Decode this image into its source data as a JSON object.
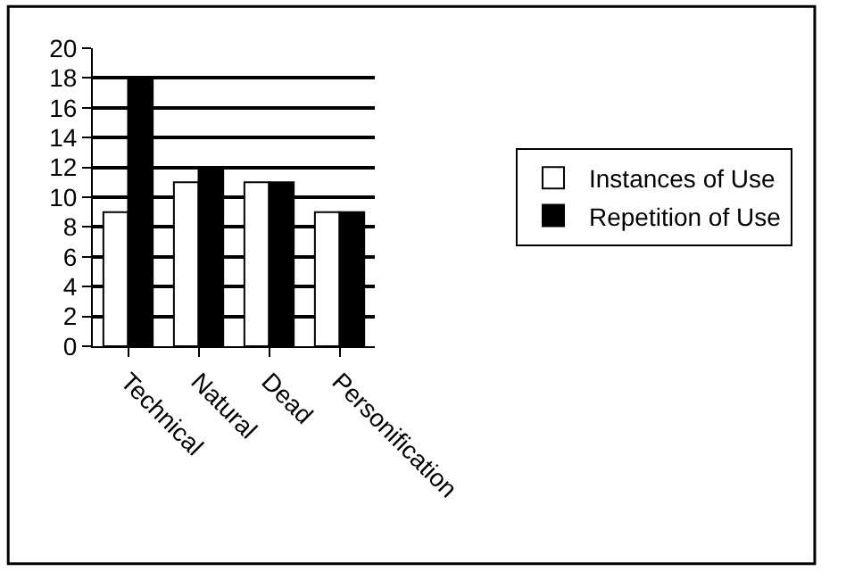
{
  "chart_data": {
    "type": "bar",
    "categories": [
      "Technical",
      "Natural",
      "Dead",
      "Personification"
    ],
    "series": [
      {
        "name": "Instances of Use",
        "color": "#ffffff",
        "values": [
          9,
          11,
          11,
          9
        ]
      },
      {
        "name": "Repetition of Use",
        "color": "#000000",
        "values": [
          18,
          12,
          11,
          9
        ]
      }
    ],
    "ylim": [
      0,
      20
    ],
    "yticks": [
      0,
      2,
      4,
      6,
      8,
      10,
      12,
      14,
      16,
      18,
      20
    ],
    "grid": "y",
    "legend": "right"
  }
}
